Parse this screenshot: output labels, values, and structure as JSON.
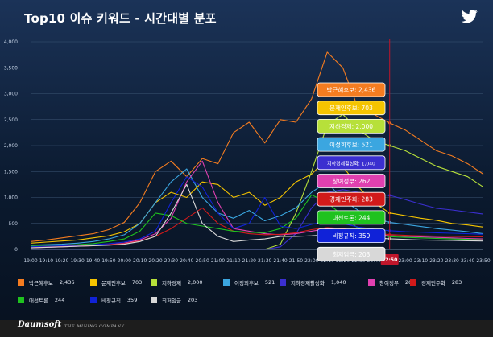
{
  "title": "Top10 이슈 키워드 - 시간대별 분포",
  "brand": "Daumsoft",
  "tagline": "THE MINING COMPANY",
  "chart_data": {
    "type": "line",
    "title": "Top10 이슈 키워드 - 시간대별 분포",
    "xlabel": "",
    "ylabel": "",
    "ylim": [
      0,
      4000
    ],
    "yticks": [
      0,
      500,
      1000,
      1500,
      2000,
      2500,
      3000,
      3500,
      4000
    ],
    "ytick_labels": [
      "0",
      "500",
      "1,000",
      "1,500",
      "2,000",
      "2,500",
      "3,000",
      "3,500",
      "4,000"
    ],
    "grid": true,
    "legend_position": "bottom",
    "categories": [
      "19:00",
      "19:10",
      "19:20",
      "19:30",
      "19:40",
      "19:50",
      "20:00",
      "20:10",
      "20:20",
      "20:30",
      "20:40",
      "20:50",
      "21:00",
      "21:10",
      "21:20",
      "21:30",
      "21:40",
      "21:50",
      "22:00",
      "22:10",
      "22:20",
      "22:30",
      "22:40",
      "22:50",
      "23:00",
      "23:10",
      "23:20",
      "23:30",
      "23:40",
      "23:50"
    ],
    "marker_label": "22:50",
    "series": [
      {
        "name": "박근혜후보",
        "value_label": "2,436",
        "color": "#f47c20",
        "values": [
          150,
          180,
          220,
          260,
          300,
          380,
          520,
          900,
          1500,
          1700,
          1400,
          1750,
          1650,
          2250,
          2450,
          2050,
          2500,
          2450,
          2900,
          3800,
          3500,
          2700,
          2600,
          2436,
          2300,
          2100,
          1900,
          1800,
          1650,
          1450
        ]
      },
      {
        "name": "문재인후보",
        "value_label": "703",
        "color": "#f5c400",
        "values": [
          120,
          140,
          160,
          180,
          220,
          260,
          340,
          500,
          900,
          1100,
          1000,
          1300,
          1250,
          1000,
          1100,
          850,
          1000,
          1300,
          1450,
          1750,
          1600,
          1200,
          900,
          703,
          650,
          600,
          560,
          500,
          470,
          430
        ]
      },
      {
        "name": "지하경제",
        "value_label": "2,000",
        "color": "#b7e03a",
        "values": [
          0,
          0,
          0,
          0,
          0,
          0,
          0,
          0,
          0,
          0,
          0,
          0,
          0,
          0,
          0,
          0,
          100,
          700,
          1500,
          2400,
          2600,
          2300,
          2100,
          2000,
          1900,
          1750,
          1600,
          1500,
          1400,
          1200
        ]
      },
      {
        "name": "이정희후보",
        "value_label": "521",
        "color": "#3ba6e0",
        "values": [
          80,
          90,
          100,
          120,
          150,
          200,
          280,
          500,
          900,
          1300,
          1550,
          1000,
          700,
          600,
          750,
          550,
          650,
          800,
          1100,
          1300,
          950,
          750,
          600,
          521,
          480,
          440,
          400,
          370,
          340,
          300
        ]
      },
      {
        "name": "지하경제활성화",
        "value_label": "1,040",
        "color": "#3b2fd0",
        "values": [
          0,
          0,
          0,
          0,
          0,
          0,
          0,
          0,
          0,
          0,
          0,
          0,
          0,
          0,
          0,
          0,
          50,
          300,
          800,
          1100,
          1150,
          1100,
          1060,
          1040,
          960,
          870,
          790,
          760,
          720,
          680
        ]
      },
      {
        "name": "창여정부",
        "value_label": "262",
        "color": "#e040b0",
        "values": [
          30,
          40,
          50,
          60,
          70,
          90,
          120,
          180,
          300,
          600,
          1300,
          1700,
          900,
          400,
          350,
          300,
          280,
          300,
          350,
          400,
          380,
          320,
          290,
          262,
          250,
          240,
          230,
          220,
          210,
          200
        ]
      },
      {
        "name": "경제민주화",
        "value_label": "283",
        "color": "#d11a1a",
        "values": [
          40,
          50,
          60,
          70,
          80,
          90,
          110,
          160,
          250,
          400,
          600,
          800,
          500,
          350,
          300,
          280,
          290,
          320,
          380,
          420,
          400,
          350,
          310,
          283,
          270,
          260,
          255,
          250,
          245,
          240
        ]
      },
      {
        "name": "대선토론",
        "value_label": "244",
        "color": "#1fc21f",
        "values": [
          60,
          70,
          80,
          90,
          110,
          150,
          200,
          350,
          700,
          650,
          500,
          450,
          400,
          350,
          330,
          320,
          400,
          600,
          1050,
          900,
          650,
          400,
          300,
          244,
          230,
          220,
          210,
          200,
          190,
          180
        ]
      },
      {
        "name": "비정규직",
        "value_label": "359",
        "color": "#1022d8",
        "values": [
          50,
          60,
          70,
          80,
          90,
          110,
          140,
          200,
          350,
          900,
          1400,
          1200,
          700,
          400,
          500,
          1000,
          450,
          400,
          480,
          550,
          500,
          430,
          390,
          359,
          340,
          330,
          320,
          310,
          300,
          290
        ]
      },
      {
        "name": "최저임금",
        "value_label": "203",
        "color": "#d8d8d8",
        "values": [
          30,
          40,
          50,
          60,
          70,
          80,
          100,
          150,
          250,
          700,
          1250,
          500,
          250,
          150,
          180,
          200,
          250,
          250,
          260,
          280,
          270,
          240,
          220,
          203,
          190,
          180,
          175,
          170,
          165,
          160
        ]
      }
    ]
  }
}
